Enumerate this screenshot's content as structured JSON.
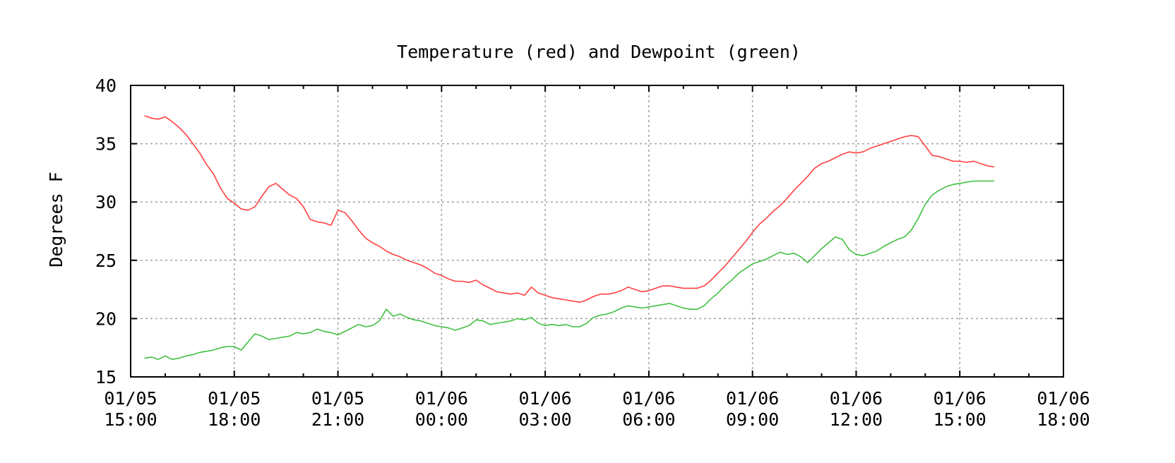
{
  "chart_data": {
    "type": "line",
    "title": "Temperature (red) and Dewpoint (green)",
    "xlabel": "",
    "ylabel": "Degrees F",
    "ylim": [
      15,
      40
    ],
    "yticks": [
      15,
      20,
      25,
      30,
      35,
      40
    ],
    "xlim": [
      0,
      27
    ],
    "x_unit": "hours since 01/05 15:00",
    "xticks": [
      {
        "x": 0,
        "date": "01/05",
        "time": "15:00"
      },
      {
        "x": 3,
        "date": "01/05",
        "time": "18:00"
      },
      {
        "x": 6,
        "date": "01/05",
        "time": "21:00"
      },
      {
        "x": 9,
        "date": "01/06",
        "time": "00:00"
      },
      {
        "x": 12,
        "date": "01/06",
        "time": "03:00"
      },
      {
        "x": 15,
        "date": "01/06",
        "time": "06:00"
      },
      {
        "x": 18,
        "date": "01/06",
        "time": "09:00"
      },
      {
        "x": 21,
        "date": "01/06",
        "time": "12:00"
      },
      {
        "x": 24,
        "date": "01/06",
        "time": "15:00"
      },
      {
        "x": 27,
        "date": "01/06",
        "time": "18:00"
      }
    ],
    "grid": true,
    "series": [
      {
        "name": "Temperature",
        "color": "#ff4040",
        "points": [
          [
            0.4,
            37.4
          ],
          [
            0.6,
            37.2
          ],
          [
            0.8,
            37.1
          ],
          [
            1.0,
            37.3
          ],
          [
            1.2,
            36.9
          ],
          [
            1.4,
            36.4
          ],
          [
            1.6,
            35.8
          ],
          [
            1.8,
            35.0
          ],
          [
            2.0,
            34.2
          ],
          [
            2.2,
            33.2
          ],
          [
            2.4,
            32.4
          ],
          [
            2.6,
            31.2
          ],
          [
            2.8,
            30.3
          ],
          [
            3.0,
            29.9
          ],
          [
            3.2,
            29.4
          ],
          [
            3.4,
            29.3
          ],
          [
            3.6,
            29.6
          ],
          [
            3.8,
            30.5
          ],
          [
            4.0,
            31.3
          ],
          [
            4.2,
            31.6
          ],
          [
            4.4,
            31.1
          ],
          [
            4.6,
            30.6
          ],
          [
            4.8,
            30.3
          ],
          [
            5.0,
            29.6
          ],
          [
            5.2,
            28.5
          ],
          [
            5.4,
            28.3
          ],
          [
            5.6,
            28.2
          ],
          [
            5.8,
            28.0
          ],
          [
            6.0,
            29.3
          ],
          [
            6.2,
            29.1
          ],
          [
            6.4,
            28.4
          ],
          [
            6.6,
            27.6
          ],
          [
            6.8,
            26.9
          ],
          [
            7.0,
            26.5
          ],
          [
            7.2,
            26.2
          ],
          [
            7.4,
            25.8
          ],
          [
            7.6,
            25.5
          ],
          [
            7.8,
            25.3
          ],
          [
            8.0,
            25.0
          ],
          [
            8.2,
            24.8
          ],
          [
            8.4,
            24.6
          ],
          [
            8.6,
            24.3
          ],
          [
            8.8,
            23.9
          ],
          [
            9.0,
            23.7
          ],
          [
            9.2,
            23.4
          ],
          [
            9.4,
            23.2
          ],
          [
            9.6,
            23.2
          ],
          [
            9.8,
            23.1
          ],
          [
            10.0,
            23.3
          ],
          [
            10.2,
            22.9
          ],
          [
            10.4,
            22.6
          ],
          [
            10.6,
            22.3
          ],
          [
            10.8,
            22.2
          ],
          [
            11.0,
            22.1
          ],
          [
            11.2,
            22.2
          ],
          [
            11.4,
            22.0
          ],
          [
            11.6,
            22.7
          ],
          [
            11.8,
            22.2
          ],
          [
            12.0,
            22.0
          ],
          [
            12.2,
            21.8
          ],
          [
            12.4,
            21.7
          ],
          [
            12.6,
            21.6
          ],
          [
            12.8,
            21.5
          ],
          [
            13.0,
            21.4
          ],
          [
            13.2,
            21.6
          ],
          [
            13.4,
            21.9
          ],
          [
            13.6,
            22.1
          ],
          [
            13.8,
            22.1
          ],
          [
            14.0,
            22.2
          ],
          [
            14.2,
            22.4
          ],
          [
            14.4,
            22.7
          ],
          [
            14.6,
            22.5
          ],
          [
            14.8,
            22.3
          ],
          [
            15.0,
            22.4
          ],
          [
            15.2,
            22.6
          ],
          [
            15.4,
            22.8
          ],
          [
            15.6,
            22.8
          ],
          [
            15.8,
            22.7
          ],
          [
            16.0,
            22.6
          ],
          [
            16.2,
            22.6
          ],
          [
            16.4,
            22.6
          ],
          [
            16.6,
            22.8
          ],
          [
            16.8,
            23.3
          ],
          [
            17.0,
            23.9
          ],
          [
            17.2,
            24.5
          ],
          [
            17.4,
            25.2
          ],
          [
            17.6,
            25.9
          ],
          [
            17.8,
            26.6
          ],
          [
            18.0,
            27.4
          ],
          [
            18.2,
            28.1
          ],
          [
            18.4,
            28.6
          ],
          [
            18.6,
            29.2
          ],
          [
            18.8,
            29.7
          ],
          [
            19.0,
            30.3
          ],
          [
            19.2,
            31.0
          ],
          [
            19.4,
            31.6
          ],
          [
            19.6,
            32.2
          ],
          [
            19.8,
            32.9
          ],
          [
            20.0,
            33.3
          ],
          [
            20.2,
            33.5
          ],
          [
            20.4,
            33.8
          ],
          [
            20.6,
            34.1
          ],
          [
            20.8,
            34.3
          ],
          [
            21.0,
            34.2
          ],
          [
            21.2,
            34.3
          ],
          [
            21.4,
            34.6
          ],
          [
            21.6,
            34.8
          ],
          [
            21.8,
            35.0
          ],
          [
            22.0,
            35.2
          ],
          [
            22.2,
            35.4
          ],
          [
            22.4,
            35.6
          ],
          [
            22.6,
            35.7
          ],
          [
            22.8,
            35.6
          ],
          [
            23.0,
            34.8
          ],
          [
            23.2,
            34.0
          ],
          [
            23.4,
            33.9
          ],
          [
            23.6,
            33.7
          ],
          [
            23.8,
            33.5
          ],
          [
            24.0,
            33.5
          ],
          [
            24.2,
            33.4
          ],
          [
            24.4,
            33.5
          ],
          [
            24.6,
            33.3
          ],
          [
            24.8,
            33.1
          ],
          [
            25.0,
            33.0
          ]
        ]
      },
      {
        "name": "Dewpoint",
        "color": "#40c040",
        "points": [
          [
            0.4,
            16.6
          ],
          [
            0.6,
            16.7
          ],
          [
            0.8,
            16.5
          ],
          [
            1.0,
            16.8
          ],
          [
            1.2,
            16.5
          ],
          [
            1.4,
            16.6
          ],
          [
            1.6,
            16.8
          ],
          [
            1.8,
            16.9
          ],
          [
            2.0,
            17.1
          ],
          [
            2.2,
            17.2
          ],
          [
            2.4,
            17.3
          ],
          [
            2.6,
            17.5
          ],
          [
            2.8,
            17.6
          ],
          [
            3.0,
            17.6
          ],
          [
            3.2,
            17.3
          ],
          [
            3.4,
            18.0
          ],
          [
            3.6,
            18.7
          ],
          [
            3.8,
            18.5
          ],
          [
            4.0,
            18.2
          ],
          [
            4.2,
            18.3
          ],
          [
            4.4,
            18.4
          ],
          [
            4.6,
            18.5
          ],
          [
            4.8,
            18.8
          ],
          [
            5.0,
            18.7
          ],
          [
            5.2,
            18.8
          ],
          [
            5.4,
            19.1
          ],
          [
            5.6,
            18.9
          ],
          [
            5.8,
            18.8
          ],
          [
            6.0,
            18.6
          ],
          [
            6.2,
            18.9
          ],
          [
            6.4,
            19.2
          ],
          [
            6.6,
            19.5
          ],
          [
            6.8,
            19.3
          ],
          [
            7.0,
            19.4
          ],
          [
            7.2,
            19.8
          ],
          [
            7.4,
            20.8
          ],
          [
            7.6,
            20.2
          ],
          [
            7.8,
            20.4
          ],
          [
            8.0,
            20.1
          ],
          [
            8.2,
            19.9
          ],
          [
            8.4,
            19.8
          ],
          [
            8.6,
            19.6
          ],
          [
            8.8,
            19.4
          ],
          [
            9.0,
            19.3
          ],
          [
            9.2,
            19.2
          ],
          [
            9.4,
            19.0
          ],
          [
            9.6,
            19.2
          ],
          [
            9.8,
            19.4
          ],
          [
            10.0,
            19.9
          ],
          [
            10.2,
            19.8
          ],
          [
            10.4,
            19.5
          ],
          [
            10.6,
            19.6
          ],
          [
            10.8,
            19.7
          ],
          [
            11.0,
            19.8
          ],
          [
            11.2,
            20.0
          ],
          [
            11.4,
            19.9
          ],
          [
            11.6,
            20.1
          ],
          [
            11.8,
            19.6
          ],
          [
            12.0,
            19.4
          ],
          [
            12.2,
            19.5
          ],
          [
            12.4,
            19.4
          ],
          [
            12.6,
            19.5
          ],
          [
            12.8,
            19.3
          ],
          [
            13.0,
            19.3
          ],
          [
            13.2,
            19.6
          ],
          [
            13.4,
            20.1
          ],
          [
            13.6,
            20.3
          ],
          [
            13.8,
            20.4
          ],
          [
            14.0,
            20.6
          ],
          [
            14.2,
            20.9
          ],
          [
            14.4,
            21.1
          ],
          [
            14.6,
            21.0
          ],
          [
            14.8,
            20.9
          ],
          [
            15.0,
            21.0
          ],
          [
            15.2,
            21.1
          ],
          [
            15.4,
            21.2
          ],
          [
            15.6,
            21.3
          ],
          [
            15.8,
            21.1
          ],
          [
            16.0,
            20.9
          ],
          [
            16.2,
            20.8
          ],
          [
            16.4,
            20.8
          ],
          [
            16.6,
            21.1
          ],
          [
            16.8,
            21.7
          ],
          [
            17.0,
            22.2
          ],
          [
            17.2,
            22.8
          ],
          [
            17.4,
            23.3
          ],
          [
            17.6,
            23.9
          ],
          [
            17.8,
            24.3
          ],
          [
            18.0,
            24.7
          ],
          [
            18.2,
            24.9
          ],
          [
            18.4,
            25.1
          ],
          [
            18.6,
            25.4
          ],
          [
            18.8,
            25.7
          ],
          [
            19.0,
            25.5
          ],
          [
            19.2,
            25.6
          ],
          [
            19.4,
            25.3
          ],
          [
            19.6,
            24.8
          ],
          [
            19.8,
            25.4
          ],
          [
            20.0,
            26.0
          ],
          [
            20.2,
            26.5
          ],
          [
            20.4,
            27.0
          ],
          [
            20.6,
            26.8
          ],
          [
            20.8,
            25.9
          ],
          [
            21.0,
            25.5
          ],
          [
            21.2,
            25.4
          ],
          [
            21.4,
            25.6
          ],
          [
            21.6,
            25.8
          ],
          [
            21.8,
            26.2
          ],
          [
            22.0,
            26.5
          ],
          [
            22.2,
            26.8
          ],
          [
            22.4,
            27.0
          ],
          [
            22.6,
            27.6
          ],
          [
            22.8,
            28.6
          ],
          [
            23.0,
            29.8
          ],
          [
            23.2,
            30.6
          ],
          [
            23.4,
            31.0
          ],
          [
            23.6,
            31.3
          ],
          [
            23.8,
            31.5
          ],
          [
            24.0,
            31.6
          ],
          [
            24.2,
            31.7
          ],
          [
            24.4,
            31.8
          ],
          [
            24.6,
            31.8
          ],
          [
            24.8,
            31.8
          ],
          [
            25.0,
            31.8
          ]
        ]
      }
    ]
  }
}
